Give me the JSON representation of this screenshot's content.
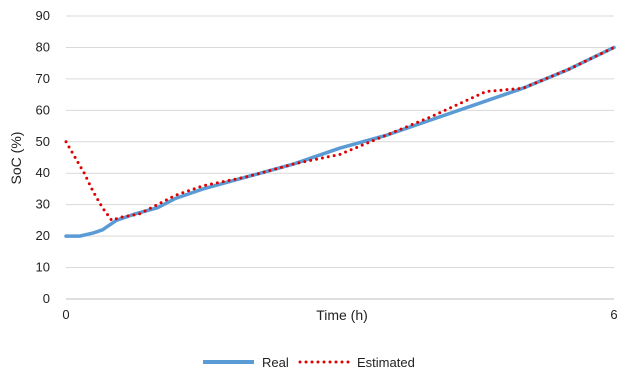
{
  "chart_data": {
    "type": "line",
    "title": "",
    "xlabel": "Time (h)",
    "ylabel": "SoC (%)",
    "xlim": [
      0,
      6
    ],
    "ylim": [
      0,
      90
    ],
    "yticks": [
      0,
      10,
      20,
      30,
      40,
      50,
      60,
      70,
      80,
      90
    ],
    "xtick_labels": [
      {
        "value": 0,
        "label": "0"
      },
      {
        "value": 6,
        "label": "6"
      }
    ],
    "grid": "horizontal",
    "legend_position": "bottom",
    "series": [
      {
        "name": "Real",
        "color": "#5B9BD5",
        "style": "solid",
        "x": [
          0,
          0.15,
          0.3,
          0.4,
          0.55,
          0.75,
          1.0,
          1.2,
          1.5,
          2.0,
          2.5,
          3.0,
          3.5,
          4.0,
          4.5,
          5.0,
          5.5,
          6.0
        ],
        "y": [
          20,
          20,
          21,
          22,
          25,
          27,
          29,
          32,
          35,
          39,
          43,
          48,
          52,
          57,
          62,
          67,
          73,
          80
        ]
      },
      {
        "name": "Estimated",
        "color": "#E00000",
        "style": "dotted",
        "x": [
          0,
          0.1,
          0.2,
          0.3,
          0.4,
          0.5,
          0.6,
          0.8,
          1.0,
          1.2,
          1.5,
          2.0,
          2.5,
          3.0,
          3.5,
          4.0,
          4.3,
          4.6,
          5.0,
          5.5,
          6.0
        ],
        "y": [
          50,
          45,
          40,
          34,
          29,
          25,
          26,
          27,
          30,
          33,
          36,
          39,
          43,
          46,
          52,
          58,
          62,
          66,
          67,
          73,
          80
        ]
      }
    ]
  }
}
